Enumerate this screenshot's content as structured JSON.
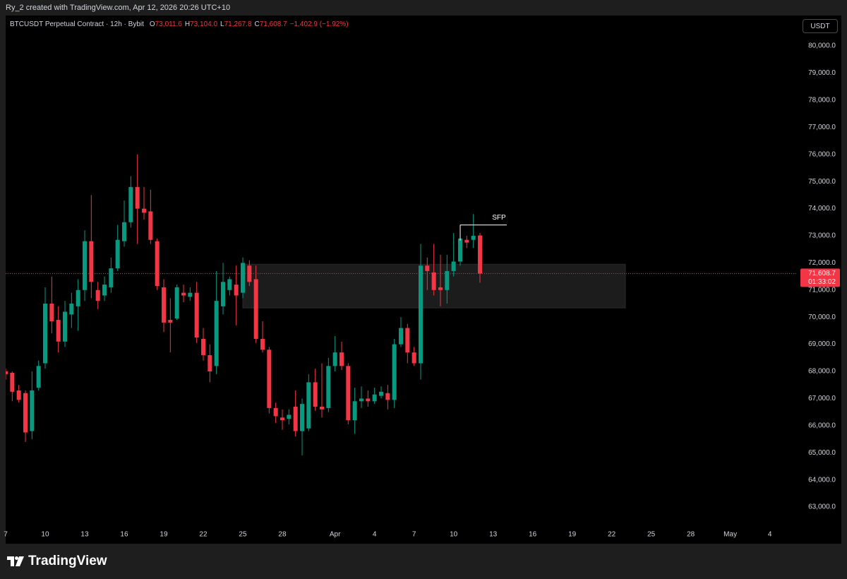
{
  "watermark": "Ry_2 created with TradingView.com, Apr 12, 2026 20:26 UTC+10",
  "currency_button": "USDT",
  "brand": "TradingView",
  "chart_data": {
    "type": "candlestick",
    "legend": {
      "symbol": "BTCUSDT Perpetual Contract · 12h · Bybit",
      "items": [
        {
          "key": "O",
          "value": "73,011.6"
        },
        {
          "key": "H",
          "value": "73,104.0"
        },
        {
          "key": "L",
          "value": "71,267.8"
        },
        {
          "key": "C",
          "value": "71,608.7"
        }
      ],
      "change": "−1,402.9 (−1.92%)"
    },
    "categories": [
      "7",
      null,
      null,
      null,
      null,
      null,
      "10",
      null,
      null,
      null,
      null,
      null,
      "13",
      null,
      null,
      null,
      null,
      null,
      "16",
      null,
      null,
      null,
      null,
      null,
      "19",
      null,
      null,
      null,
      null,
      null,
      "22",
      null,
      null,
      null,
      null,
      null,
      "25",
      null,
      null,
      null,
      null,
      null,
      "28",
      null,
      null,
      null,
      null,
      null,
      null,
      null,
      "Apr",
      null,
      null,
      null,
      null,
      null,
      "4",
      null,
      null,
      null,
      null,
      null,
      "7",
      null,
      null,
      null,
      null,
      null,
      "10",
      null,
      null,
      null,
      null,
      null,
      "13",
      null,
      null,
      null,
      null,
      null,
      "16",
      null,
      null,
      null,
      null,
      null,
      "19",
      null,
      null,
      null,
      null,
      null,
      "22",
      null,
      null,
      null,
      null,
      null,
      "25",
      null,
      null,
      null,
      null,
      null,
      "28",
      null,
      null,
      null,
      null,
      null,
      "May",
      null,
      null,
      null,
      null,
      null,
      "4",
      null,
      null,
      null
    ],
    "open": [
      68000,
      67950,
      67300,
      67200,
      65800,
      67400,
      68300,
      70500,
      69900,
      69100,
      70100,
      70400,
      71000,
      72800,
      71000,
      70800,
      71100,
      71800,
      72800,
      73500,
      74800,
      74000,
      73900,
      72800,
      71100,
      69900,
      69950,
      70900,
      70750,
      70900,
      69200,
      68600,
      68200,
      70400,
      71000,
      71200,
      70900,
      71900,
      71400,
      69200,
      68800,
      66650,
      66300,
      66250,
      66700,
      65800,
      65900,
      67600,
      66700,
      66650,
      68200,
      68700,
      68200,
      66200,
      66900,
      67000,
      66900,
      67100,
      67200,
      66950,
      69000,
      69600,
      68700,
      68300,
      71900,
      71650,
      71100,
      71000,
      71700,
      72050,
      72850,
      72850,
      73011.6,
      null,
      null,
      null,
      null,
      null,
      null,
      null,
      null,
      null,
      null,
      null,
      null,
      null,
      null,
      null,
      null,
      null,
      null,
      null,
      null,
      null,
      null,
      null,
      null,
      null,
      null,
      null,
      null,
      null,
      null,
      null,
      null,
      null,
      null,
      null,
      null,
      null,
      null,
      null,
      null,
      null,
      null,
      null,
      null,
      null,
      null,
      null
    ],
    "high": [
      68100,
      68000,
      67500,
      67300,
      68000,
      68400,
      71100,
      71500,
      70400,
      70600,
      70900,
      71400,
      73200,
      74500,
      71300,
      71500,
      72200,
      73400,
      74300,
      75200,
      76000,
      74800,
      74700,
      72900,
      71400,
      70700,
      71200,
      71200,
      71100,
      71300,
      69600,
      69000,
      71700,
      72000,
      71500,
      71900,
      72200,
      72100,
      71900,
      69850,
      68900,
      66850,
      66600,
      66600,
      67300,
      67000,
      67900,
      68100,
      68300,
      68500,
      69300,
      69100,
      68300,
      67400,
      67450,
      67300,
      67400,
      67450,
      67500,
      69200,
      70000,
      69750,
      68900,
      72700,
      72200,
      72700,
      72300,
      72300,
      73100,
      73400,
      73000,
      73800,
      73104.0,
      null,
      null,
      null,
      null,
      null,
      null,
      null,
      null,
      null,
      null,
      null,
      null,
      null,
      null,
      null,
      null,
      null,
      null,
      null,
      null,
      null,
      null,
      null,
      null,
      null,
      null,
      null,
      null,
      null,
      null,
      null,
      null,
      null,
      null,
      null,
      null,
      null,
      null,
      null,
      null,
      null,
      null,
      null,
      null,
      null,
      null,
      null
    ],
    "low": [
      67700,
      66900,
      66850,
      65400,
      65500,
      67300,
      68100,
      69400,
      68700,
      68900,
      69600,
      69500,
      70600,
      70700,
      70300,
      70600,
      70900,
      71700,
      72600,
      73300,
      72700,
      73600,
      72700,
      71000,
      69450,
      68700,
      69900,
      70550,
      70600,
      69050,
      68400,
      67600,
      67900,
      70100,
      70800,
      69700,
      70700,
      71150,
      69050,
      68700,
      66450,
      66100,
      65850,
      66050,
      65600,
      64900,
      65800,
      66550,
      66300,
      66500,
      68000,
      68050,
      66050,
      65700,
      66650,
      66700,
      66800,
      67000,
      66600,
      66650,
      68900,
      68300,
      68200,
      67700,
      71000,
      70800,
      70400,
      70500,
      71500,
      71900,
      72550,
      72550,
      71267.8,
      null,
      null,
      null,
      null,
      null,
      null,
      null,
      null,
      null,
      null,
      null,
      null,
      null,
      null,
      null,
      null,
      null,
      null,
      null,
      null,
      null,
      null,
      null,
      null,
      null,
      null,
      null,
      null,
      null,
      null,
      null,
      null,
      null,
      null,
      null,
      null,
      null,
      null,
      null,
      null,
      null,
      null,
      null,
      null,
      null,
      null,
      null
    ],
    "close": [
      67900,
      67250,
      66950,
      65750,
      67300,
      68200,
      70500,
      69850,
      69100,
      70200,
      70500,
      71000,
      72800,
      71300,
      70600,
      71200,
      71800,
      72850,
      73500,
      74800,
      74000,
      73850,
      72850,
      71150,
      69800,
      69800,
      71100,
      70800,
      70900,
      69250,
      68600,
      68000,
      70600,
      71300,
      71400,
      70800,
      72000,
      71300,
      69200,
      68800,
      66650,
      66350,
      66200,
      66400,
      65800,
      66800,
      67600,
      66700,
      66600,
      68200,
      68700,
      68200,
      66200,
      66900,
      67000,
      66900,
      67150,
      67250,
      66950,
      69000,
      69600,
      68700,
      68300,
      71900,
      71700,
      71000,
      71000,
      71700,
      72050,
      72900,
      72750,
      73000,
      71608.7,
      null,
      null,
      null,
      null,
      null,
      null,
      null,
      null,
      null,
      null,
      null,
      null,
      null,
      null,
      null,
      null,
      null,
      null,
      null,
      null,
      null,
      null,
      null,
      null,
      null,
      null,
      null,
      null,
      null,
      null,
      null,
      null,
      null,
      null,
      null,
      null,
      null,
      null,
      null,
      null,
      null,
      null,
      null,
      null,
      null,
      null,
      null
    ],
    "up_color": "#089981",
    "down_color": "#f23645",
    "last_price_label": "71,608.7",
    "countdown": "01:33:02",
    "zone": {
      "top": 71950,
      "bottom": 70340,
      "color": "#1c1c1c"
    },
    "sfp": {
      "label": "SFP",
      "price": 73400
    },
    "ylim": [
      62300,
      81120
    ],
    "yticks": [
      {
        "value": 63000,
        "label": "63,000.0"
      },
      {
        "value": 64000,
        "label": "64,000.0"
      },
      {
        "value": 65000,
        "label": "65,000.0"
      },
      {
        "value": 66000,
        "label": "66,000.0"
      },
      {
        "value": 67000,
        "label": "67,000.0"
      },
      {
        "value": 68000,
        "label": "68,000.0"
      },
      {
        "value": 69000,
        "label": "69,000.0"
      },
      {
        "value": 70000,
        "label": "70,000.0"
      },
      {
        "value": 71000,
        "label": "71,000.0"
      },
      {
        "value": 72000,
        "label": "72,000.0"
      },
      {
        "value": 73000,
        "label": "73,000.0"
      },
      {
        "value": 74000,
        "label": "74,000.0"
      },
      {
        "value": 75000,
        "label": "75,000.0"
      },
      {
        "value": 76000,
        "label": "76,000.0"
      },
      {
        "value": 77000,
        "label": "77,000.0"
      },
      {
        "value": 78000,
        "label": "78,000.0"
      },
      {
        "value": 79000,
        "label": "79,000.0"
      },
      {
        "value": 80000,
        "label": "80,000.0"
      }
    ],
    "grid": false
  }
}
